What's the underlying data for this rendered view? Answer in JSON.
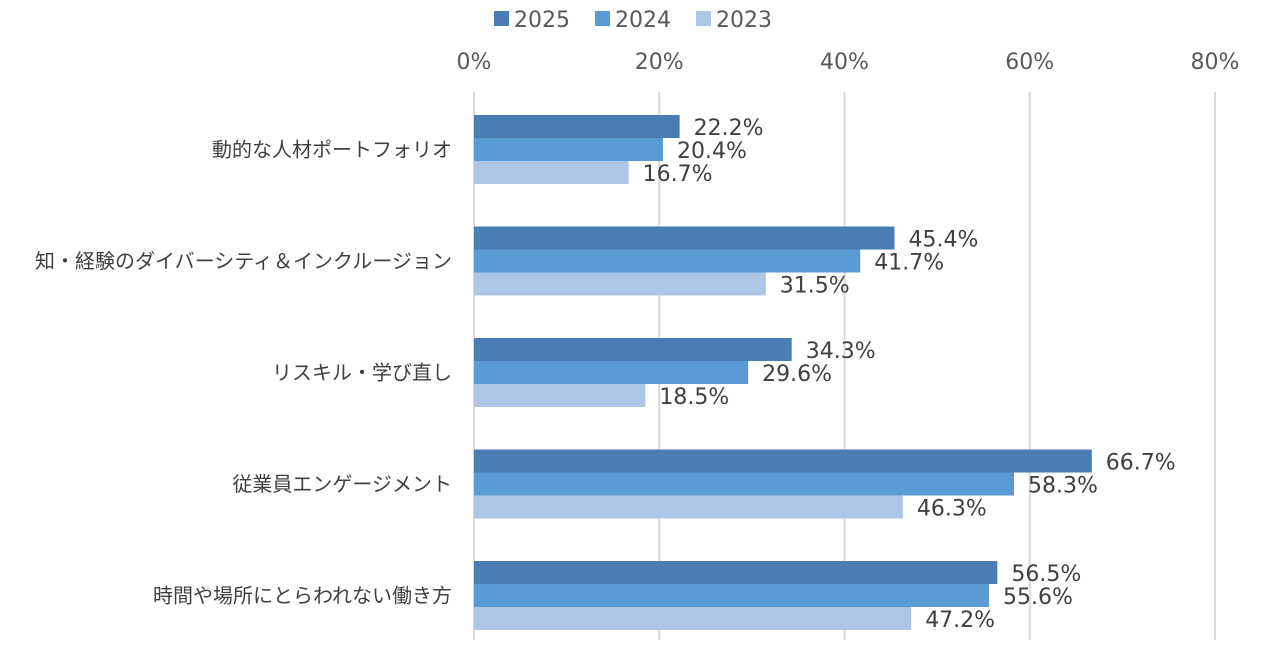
{
  "chart_data": {
    "type": "bar",
    "orientation": "horizontal",
    "title": "",
    "xlabel": "",
    "ylabel": "",
    "xlim": [
      0,
      80
    ],
    "x_ticks": [
      "0%",
      "20%",
      "40%",
      "60%",
      "80%"
    ],
    "x_tick_values": [
      0,
      20,
      40,
      60,
      80
    ],
    "grid": true,
    "legend_position": "top",
    "categories": [
      "動的な人材ポートフォリオ",
      "知・経験のダイバーシティ＆インクルージョン",
      "リスキル・学び直し",
      "従業員エンゲージメント",
      "時間や場所にとらわれない働き方"
    ],
    "series": [
      {
        "name": "2025",
        "color": "#4a7db3",
        "values": [
          22.2,
          45.4,
          34.3,
          66.7,
          56.5
        ],
        "labels": [
          "22.2%",
          "45.4%",
          "34.3%",
          "66.7%",
          "56.5%"
        ]
      },
      {
        "name": "2024",
        "color": "#5b9bd5",
        "values": [
          20.4,
          41.7,
          29.6,
          58.3,
          55.6
        ],
        "labels": [
          "20.4%",
          "41.7%",
          "29.6%",
          "58.3%",
          "55.6%"
        ]
      },
      {
        "name": "2023",
        "color": "#aec6e6",
        "values": [
          16.7,
          31.5,
          18.5,
          46.3,
          47.2
        ],
        "labels": [
          "16.7%",
          "31.5%",
          "18.5%",
          "46.3%",
          "47.2%"
        ]
      }
    ]
  }
}
